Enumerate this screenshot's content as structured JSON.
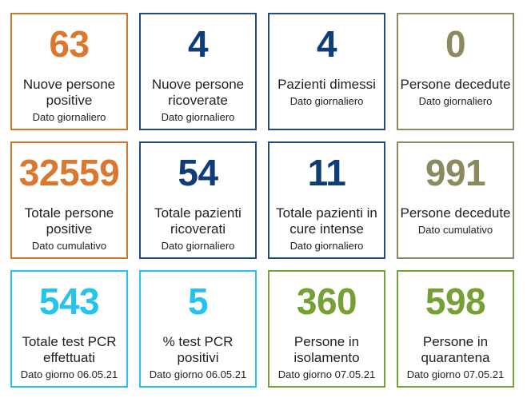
{
  "cards": [
    {
      "value": "63",
      "label": "Nuove persone positive",
      "sub": "Dato giornaliero",
      "color": "#d9782e"
    },
    {
      "value": "4",
      "label": "Nuove persone ricoverate",
      "sub": "Dato giornaliero",
      "color": "#0f3d78"
    },
    {
      "value": "4",
      "label": "Pazienti dimessi",
      "sub": "Dato giornaliero",
      "color": "#0f3d78"
    },
    {
      "value": "0",
      "label": "Persone decedute",
      "sub": "Dato giornaliero",
      "color": "#8a8a5e"
    },
    {
      "value": "32559",
      "label": "Totale persone positive",
      "sub": "Dato cumulativo",
      "color": "#d9782e"
    },
    {
      "value": "54",
      "label": "Totale pazienti ricoverati",
      "sub": "Dato giornaliero",
      "color": "#0f3d78"
    },
    {
      "value": "11",
      "label": "Totale pazienti in cure intense",
      "sub": "Dato giornaliero",
      "color": "#0f3d78"
    },
    {
      "value": "991",
      "label": "Persone decedute",
      "sub": "Dato cumulativo",
      "color": "#8a8a5e"
    },
    {
      "value": "543",
      "label": "Totale test PCR effettuati",
      "sub": "Dato giorno 06.05.21",
      "color": "#24c4ee"
    },
    {
      "value": "5",
      "label": "% test PCR positivi",
      "sub": "Dato giorno 06.05.21",
      "color": "#24c4ee"
    },
    {
      "value": "360",
      "label": "Persone in isolamento",
      "sub": "Dato giorno 07.05.21",
      "color": "#76a033"
    },
    {
      "value": "598",
      "label": "Persone in quarantena",
      "sub": "Dato giorno 07.05.21",
      "color": "#76a033"
    }
  ]
}
